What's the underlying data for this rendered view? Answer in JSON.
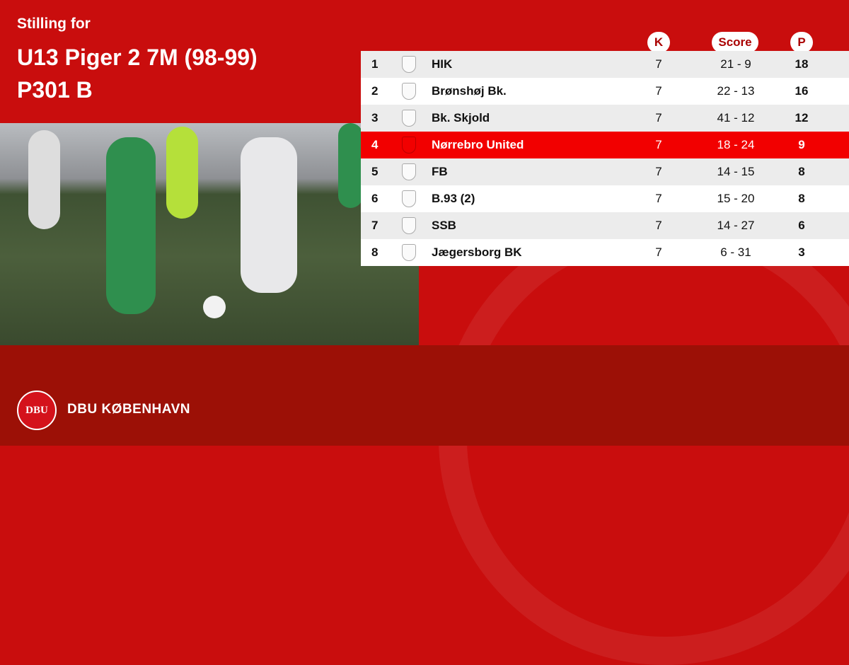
{
  "header": {
    "subtitle": "Stilling for",
    "title_line1": "U13 Piger 2 7M (98-99)",
    "title_line2": "P301 B"
  },
  "colors": {
    "primary": "#c90d0d",
    "footer": "#9c1006",
    "highlight": "#f20000"
  },
  "table": {
    "columns": {
      "k": "K",
      "score": "Score",
      "p": "P"
    },
    "rows": [
      {
        "rank": "1",
        "team": "HIK",
        "k": "7",
        "score": "21 - 9",
        "p": "18"
      },
      {
        "rank": "2",
        "team": "Brønshøj Bk.",
        "k": "7",
        "score": "22 - 13",
        "p": "16"
      },
      {
        "rank": "3",
        "team": "Bk. Skjold",
        "k": "7",
        "score": "41 - 12",
        "p": "12"
      },
      {
        "rank": "4",
        "team": "Nørrebro United",
        "k": "7",
        "score": "18 - 24",
        "p": "9",
        "highlighted": true
      },
      {
        "rank": "5",
        "team": "FB",
        "k": "7",
        "score": "14 - 15",
        "p": "8"
      },
      {
        "rank": "6",
        "team": "B.93 (2)",
        "k": "7",
        "score": "15 - 20",
        "p": "8"
      },
      {
        "rank": "7",
        "team": "SSB",
        "k": "7",
        "score": "14 - 27",
        "p": "6"
      },
      {
        "rank": "8",
        "team": "Jægersborg BK",
        "k": "7",
        "score": "6 - 31",
        "p": "3"
      }
    ]
  },
  "footer": {
    "logo_text": "DBU",
    "brand": "DBU KØBENHAVN"
  }
}
